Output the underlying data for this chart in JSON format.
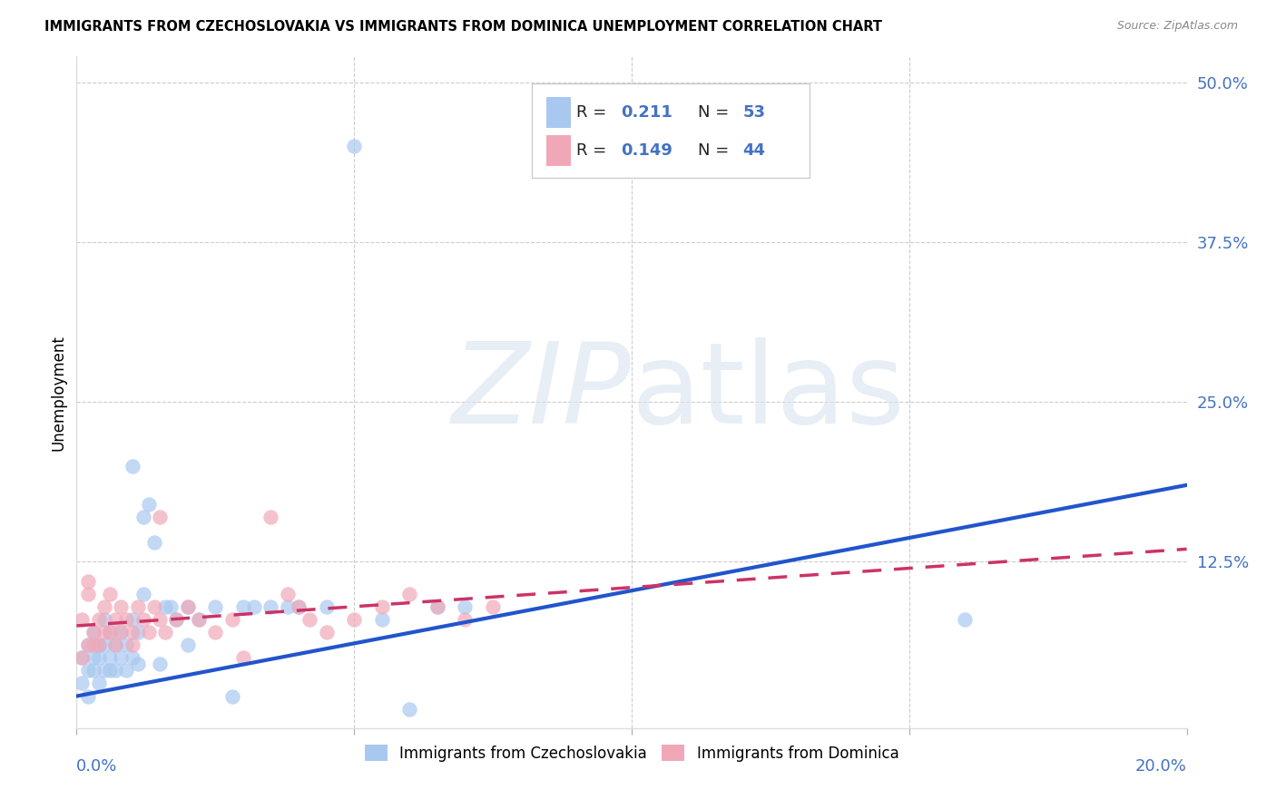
{
  "title": "IMMIGRANTS FROM CZECHOSLOVAKIA VS IMMIGRANTS FROM DOMINICA UNEMPLOYMENT CORRELATION CHART",
  "source": "Source: ZipAtlas.com",
  "ylabel": "Unemployment",
  "yticks": [
    0.0,
    0.125,
    0.25,
    0.375,
    0.5
  ],
  "ytick_labels": [
    "",
    "12.5%",
    "25.0%",
    "37.5%",
    "50.0%"
  ],
  "xlim": [
    0.0,
    0.2
  ],
  "ylim": [
    -0.005,
    0.52
  ],
  "series1_label": "Immigrants from Czechoslovakia",
  "series2_label": "Immigrants from Dominica",
  "series1_color": "#A8C8F0",
  "series2_color": "#F0A8B8",
  "series1_R": 0.211,
  "series1_N": 53,
  "series2_R": 0.149,
  "series2_N": 44,
  "trend1_color": "#2255CC",
  "trend2_color": "#CC3366",
  "watermark_zip": "ZIP",
  "watermark_atlas": "atlas",
  "background_color": "#FFFFFF",
  "grid_color": "#CCCCCC",
  "series1_x": [
    0.001,
    0.001,
    0.002,
    0.002,
    0.002,
    0.003,
    0.003,
    0.003,
    0.004,
    0.004,
    0.004,
    0.005,
    0.005,
    0.005,
    0.006,
    0.006,
    0.006,
    0.007,
    0.007,
    0.008,
    0.008,
    0.009,
    0.009,
    0.01,
    0.01,
    0.011,
    0.011,
    0.012,
    0.013,
    0.014,
    0.015,
    0.016,
    0.017,
    0.018,
    0.02,
    0.022,
    0.025,
    0.028,
    0.03,
    0.032,
    0.035,
    0.038,
    0.04,
    0.045,
    0.05,
    0.055,
    0.06,
    0.065,
    0.07,
    0.16,
    0.01,
    0.012,
    0.02
  ],
  "series1_y": [
    0.03,
    0.05,
    0.04,
    0.06,
    0.02,
    0.05,
    0.04,
    0.07,
    0.05,
    0.06,
    0.03,
    0.04,
    0.06,
    0.08,
    0.05,
    0.07,
    0.04,
    0.06,
    0.04,
    0.05,
    0.07,
    0.06,
    0.04,
    0.05,
    0.08,
    0.07,
    0.045,
    0.16,
    0.17,
    0.14,
    0.045,
    0.09,
    0.09,
    0.08,
    0.06,
    0.08,
    0.09,
    0.02,
    0.09,
    0.09,
    0.09,
    0.09,
    0.09,
    0.09,
    0.45,
    0.08,
    0.01,
    0.09,
    0.09,
    0.08,
    0.2,
    0.1,
    0.09
  ],
  "series2_x": [
    0.001,
    0.001,
    0.002,
    0.002,
    0.003,
    0.003,
    0.004,
    0.004,
    0.005,
    0.005,
    0.006,
    0.006,
    0.007,
    0.007,
    0.008,
    0.008,
    0.009,
    0.01,
    0.01,
    0.011,
    0.012,
    0.013,
    0.014,
    0.015,
    0.016,
    0.018,
    0.02,
    0.022,
    0.025,
    0.028,
    0.03,
    0.035,
    0.038,
    0.04,
    0.042,
    0.045,
    0.05,
    0.055,
    0.06,
    0.065,
    0.07,
    0.075,
    0.015,
    0.002
  ],
  "series2_y": [
    0.05,
    0.08,
    0.06,
    0.1,
    0.07,
    0.06,
    0.08,
    0.06,
    0.07,
    0.09,
    0.1,
    0.07,
    0.08,
    0.06,
    0.07,
    0.09,
    0.08,
    0.07,
    0.06,
    0.09,
    0.08,
    0.07,
    0.09,
    0.08,
    0.07,
    0.08,
    0.09,
    0.08,
    0.07,
    0.08,
    0.05,
    0.16,
    0.1,
    0.09,
    0.08,
    0.07,
    0.08,
    0.09,
    0.1,
    0.09,
    0.08,
    0.09,
    0.16,
    0.11
  ],
  "trend1_x0": 0.0,
  "trend1_y0": 0.02,
  "trend1_x1": 0.2,
  "trend1_y1": 0.185,
  "trend2_x0": 0.0,
  "trend2_y0": 0.075,
  "trend2_x1": 0.2,
  "trend2_y1": 0.135
}
